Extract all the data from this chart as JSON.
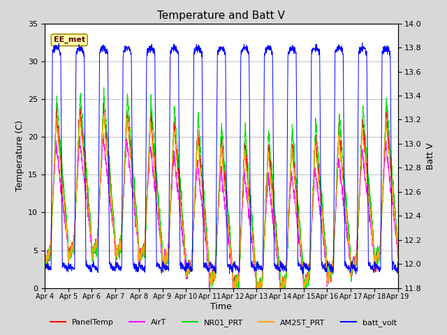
{
  "title": "Temperature and Batt V",
  "xlabel": "Time",
  "ylabel_left": "Temperature (C)",
  "ylabel_right": "Batt V",
  "annotation": "EE_met",
  "temp_ylim": [
    0,
    35
  ],
  "temp_yticks": [
    0,
    5,
    10,
    15,
    20,
    25,
    30,
    35
  ],
  "batt_ylim": [
    11.8,
    14.0
  ],
  "batt_yticks": [
    11.8,
    12.0,
    12.2,
    12.4,
    12.6,
    12.8,
    13.0,
    13.2,
    13.4,
    13.6,
    13.8,
    14.0
  ],
  "xtick_labels": [
    "Apr 4",
    "Apr 5",
    "Apr 6",
    "Apr 7",
    "Apr 8",
    "Apr 9",
    "Apr 10",
    "Apr 11",
    "Apr 12",
    "Apr 13",
    "Apr 14",
    "Apr 15",
    "Apr 16",
    "Apr 17",
    "Apr 18",
    "Apr 19"
  ],
  "bg_color": "#d8d8d8",
  "plot_bg_color": "#ffffff",
  "grid_color": "#c8c8c8",
  "legend_entries": [
    {
      "label": "PanelTemp",
      "color": "#ff0000"
    },
    {
      "label": "AirT",
      "color": "#ff00ff"
    },
    {
      "label": "NR01_PRT",
      "color": "#00dd00"
    },
    {
      "label": "AM25T_PRT",
      "color": "#ffaa00"
    },
    {
      "label": "batt_volt",
      "color": "#0000ff"
    }
  ],
  "num_days": 15,
  "points_per_day": 144
}
